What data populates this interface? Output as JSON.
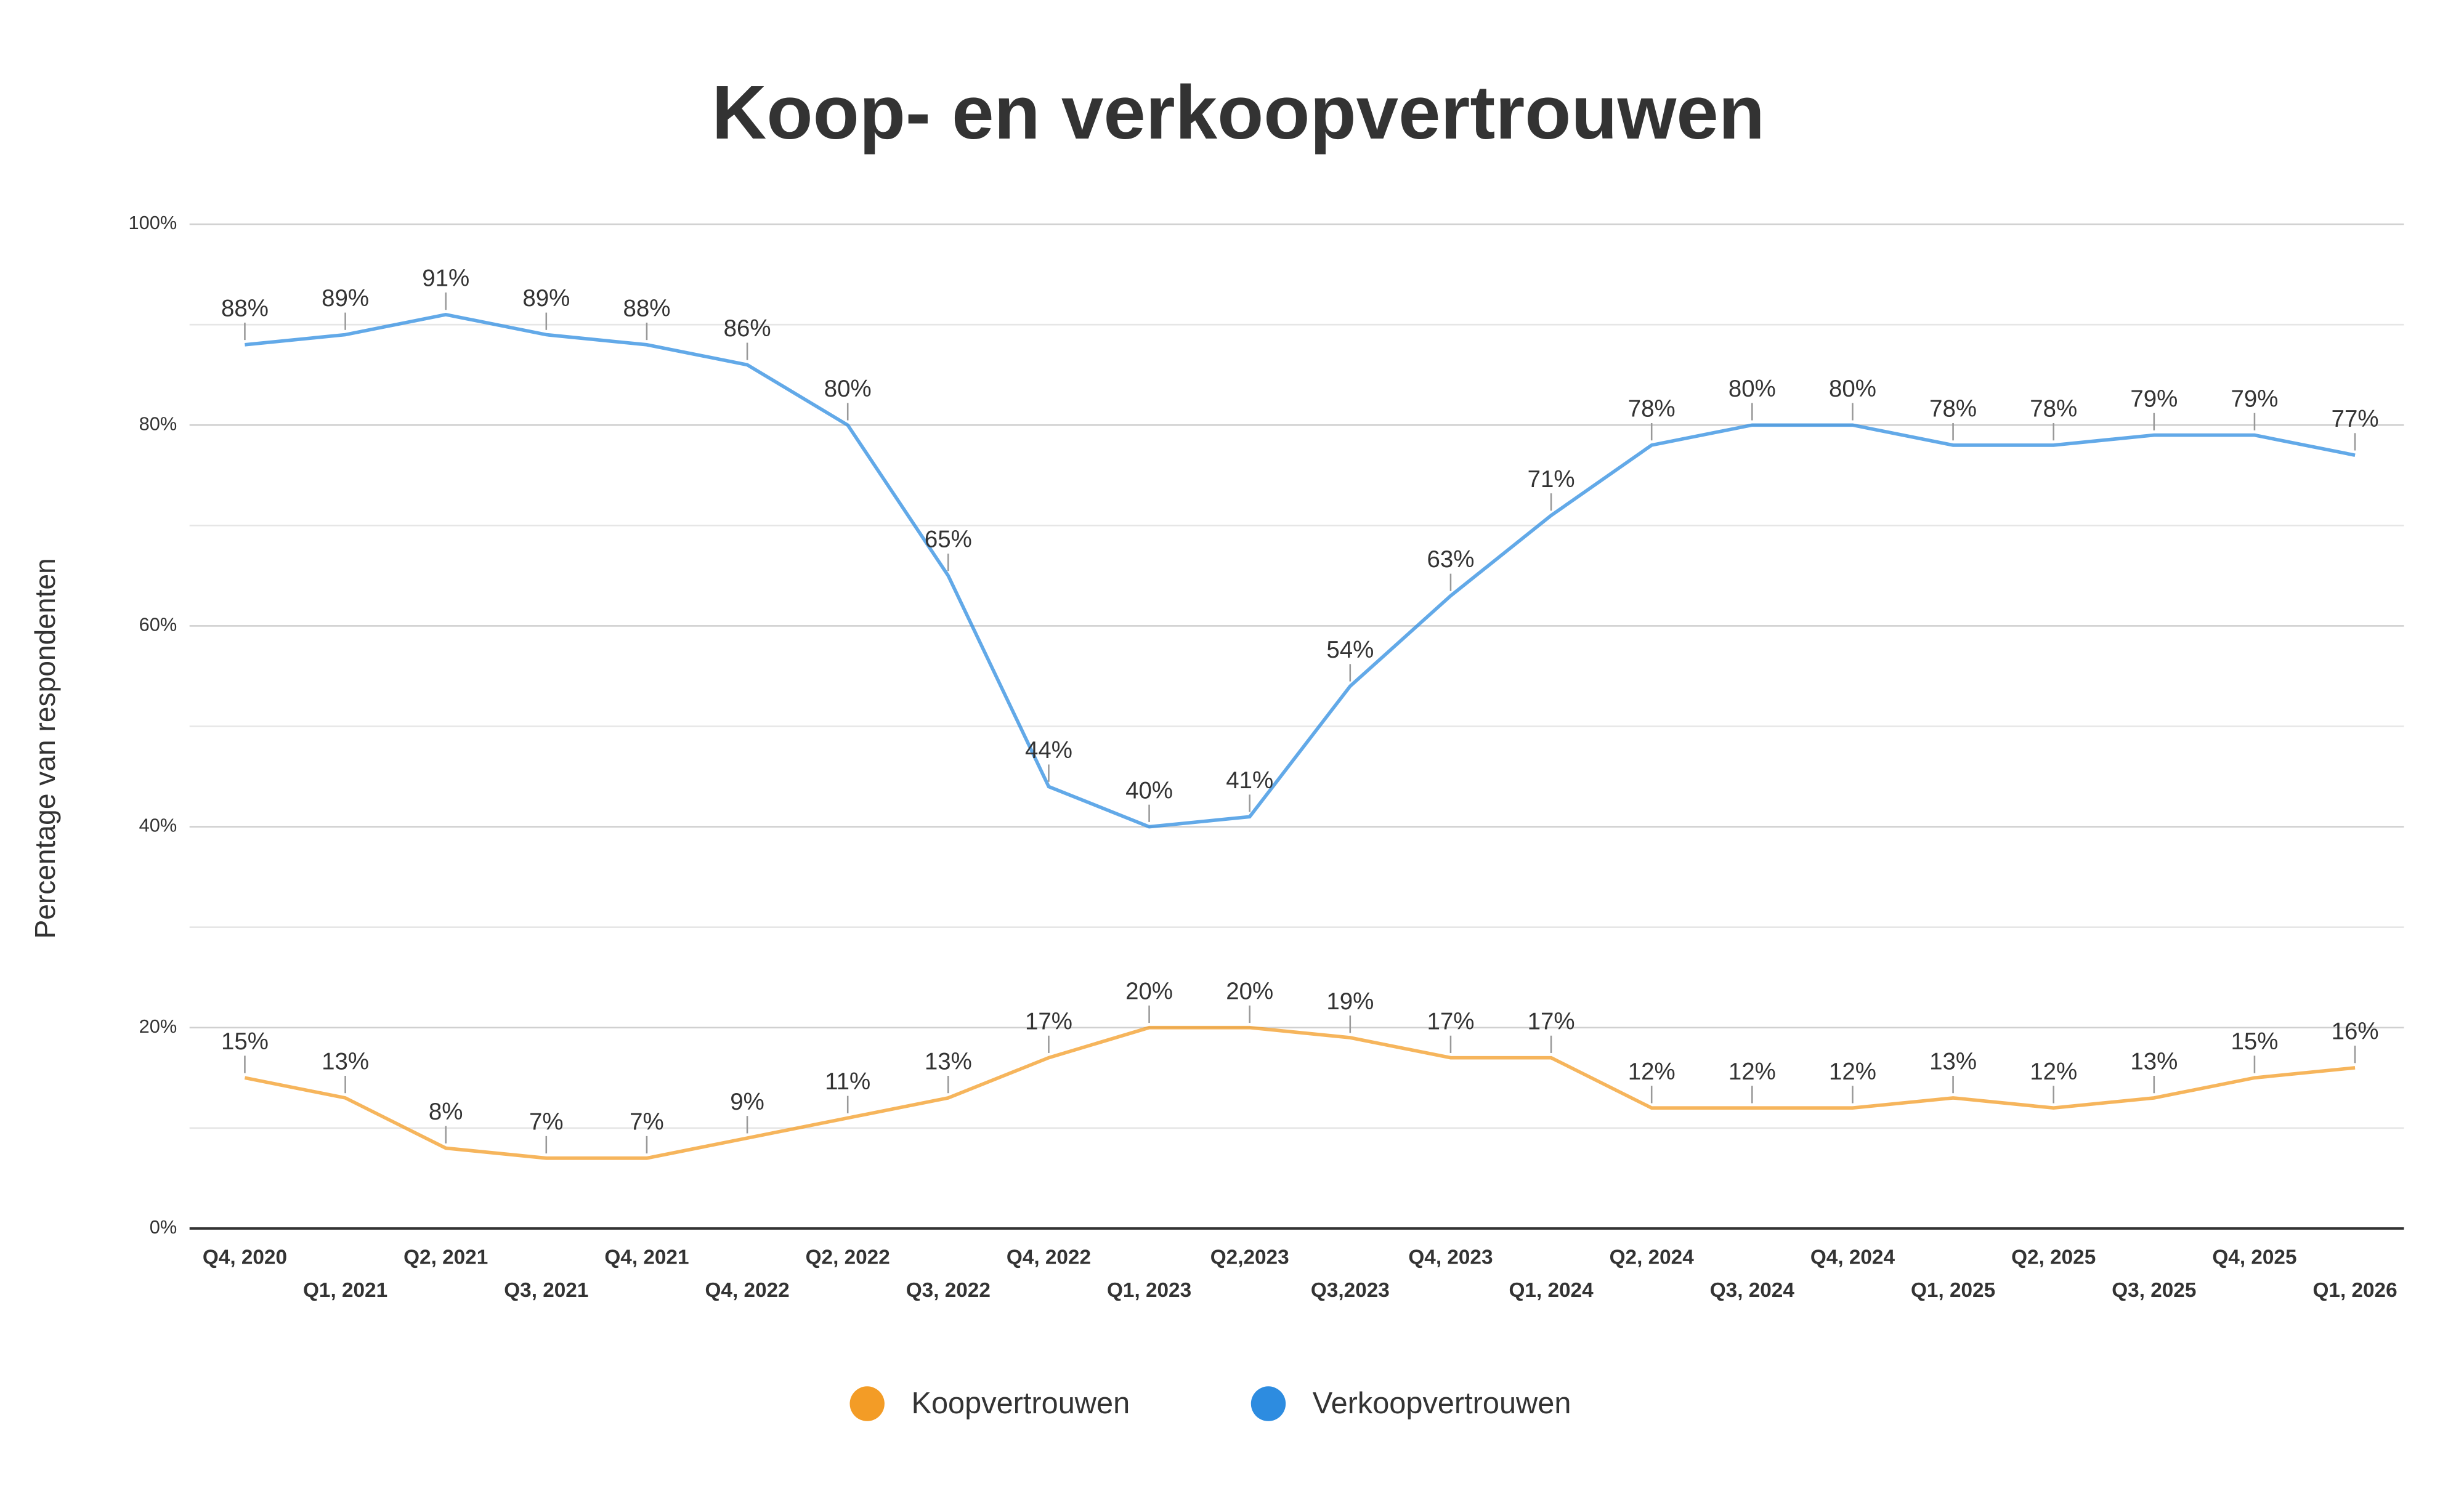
{
  "chart_data": {
    "type": "line",
    "title": "Koop- en verkoopvertrouwen",
    "y_label": "Percentage van respondenten",
    "categories": [
      "Q4, 2020",
      "Q1, 2021",
      "Q2, 2021",
      "Q3, 2021",
      "Q4, 2021",
      "Q4, 2022",
      "Q2, 2022",
      "Q3, 2022",
      "Q4, 2022",
      "Q1, 2023",
      "Q2,2023",
      "Q3,2023",
      "Q4, 2023",
      "Q1, 2024",
      "Q2, 2024",
      "Q3, 2024",
      "Q4, 2024",
      "Q1, 2025",
      "Q2, 2025",
      "Q3, 2025",
      "Q4, 2025",
      "Q1, 2026"
    ],
    "series": [
      {
        "name": "Koopvertrouwen",
        "color": "#f39c26",
        "values": [
          15,
          13,
          8,
          7,
          7,
          9,
          11,
          13,
          17,
          20,
          20,
          19,
          17,
          17,
          12,
          12,
          12,
          13,
          12,
          13,
          15,
          16
        ],
        "value_labels": [
          "15%",
          "13%",
          "8%",
          "7%",
          "7%",
          "9%",
          "11%",
          "13%",
          "17%",
          "20%",
          "20%",
          "19%",
          "17%",
          "17%",
          "12%",
          "12%",
          "12%",
          "13%",
          "12%",
          "13%",
          "15%",
          "16%"
        ]
      },
      {
        "name": "Verkoopvertrouwen",
        "color": "#2d8ce0",
        "values": [
          88,
          89,
          91,
          89,
          88,
          86,
          80,
          65,
          44,
          40,
          41,
          54,
          63,
          71,
          78,
          80,
          80,
          78,
          78,
          79,
          79,
          77
        ],
        "value_labels": [
          "88%",
          "89%",
          "91%",
          "89%",
          "88%",
          "86%",
          "80%",
          "65%",
          "44%",
          "40%",
          "41%",
          "54%",
          "63%",
          "71%",
          "78%",
          "80%",
          "80%",
          "78%",
          "78%",
          "79%",
          "79%",
          "77%"
        ]
      }
    ],
    "ylim": [
      0,
      100
    ],
    "yticks": [
      {
        "value": 0,
        "label": "0%"
      },
      {
        "value": 20,
        "label": "20%"
      },
      {
        "value": 40,
        "label": "40%"
      },
      {
        "value": 60,
        "label": "60%"
      },
      {
        "value": 80,
        "label": "80%"
      },
      {
        "value": 100,
        "label": "100%"
      }
    ],
    "minor_yticks": [
      10,
      30,
      50,
      70,
      90
    ],
    "grid": true,
    "legend": "bottom"
  }
}
